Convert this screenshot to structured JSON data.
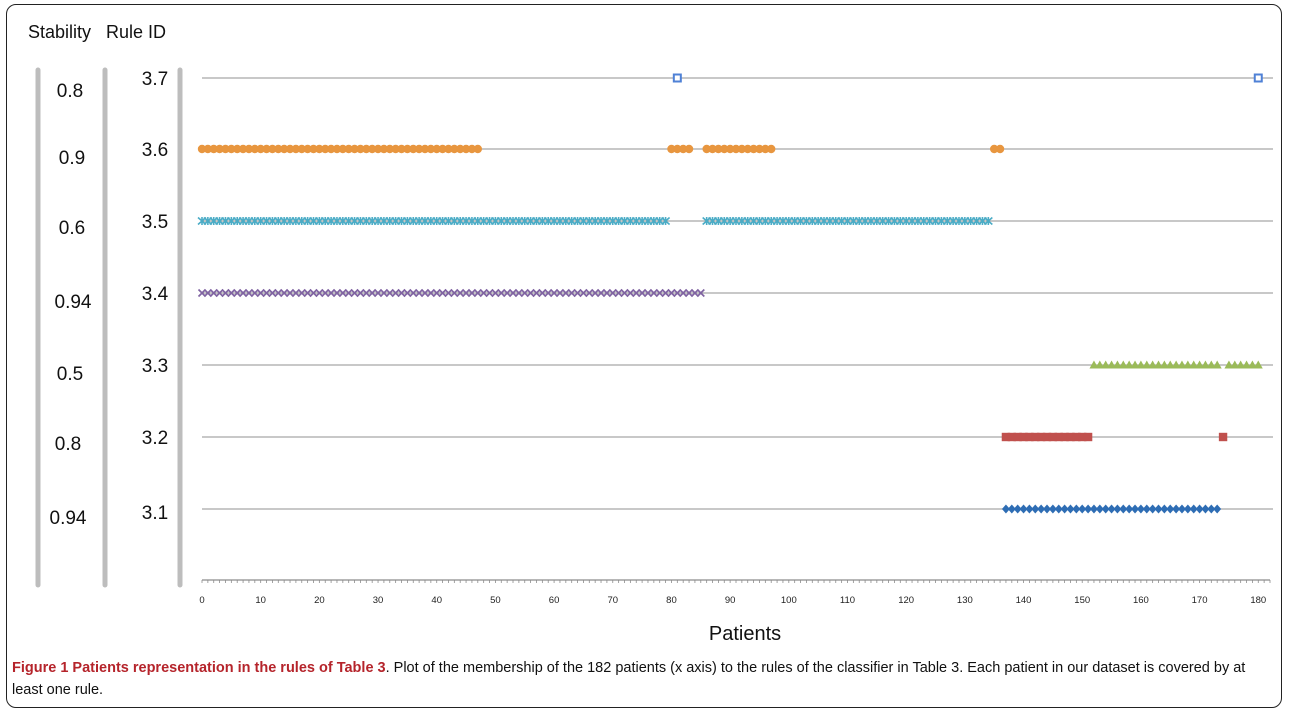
{
  "headers": {
    "stability": "Stability",
    "rule_id": "Rule ID"
  },
  "caption": {
    "title": "Figure 1 Patients representation in the rules of Table 3",
    "text": ". Plot of the membership of the 182 patients (x axis) to the rules of the classifier in Table 3. Each patient in our dataset is covered by at least one rule."
  },
  "colors": {
    "gridline": "#a6a6a6",
    "bracket": "#bdbdbd",
    "axis": "#8c8c8c",
    "caption_title": "#b5242b"
  },
  "chart_data": {
    "type": "scatter",
    "xlabel": "Patients",
    "xlim": [
      0,
      182
    ],
    "xticks": [
      0,
      10,
      20,
      30,
      40,
      50,
      60,
      70,
      80,
      90,
      100,
      110,
      120,
      130,
      140,
      150,
      160,
      170,
      180
    ],
    "grid": true,
    "rows": [
      {
        "stability": "0.8",
        "rule_id": "3.7",
        "marker": "square-open",
        "color": "#4f81d6",
        "points": [
          81,
          180
        ]
      },
      {
        "stability": "0.9",
        "rule_id": "3.6",
        "marker": "circle",
        "color": "#e8963f",
        "ranges": [
          [
            0,
            47
          ],
          [
            80,
            83
          ],
          [
            86,
            97
          ],
          [
            135,
            136
          ]
        ]
      },
      {
        "stability": "0.6",
        "rule_id": "3.5",
        "marker": "star",
        "color": "#4bacc6",
        "ranges": [
          [
            0,
            79
          ],
          [
            86,
            134
          ]
        ]
      },
      {
        "stability": "0.94",
        "rule_id": "3.4",
        "marker": "x",
        "color": "#8064a2",
        "ranges": [
          [
            0,
            85
          ]
        ]
      },
      {
        "stability": "0.5",
        "rule_id": "3.3",
        "marker": "triangle",
        "color": "#9bbb59",
        "ranges": [
          [
            152,
            173
          ],
          [
            175,
            180
          ]
        ]
      },
      {
        "stability": "0.8",
        "rule_id": "3.2",
        "marker": "square",
        "color": "#c0504d",
        "ranges": [
          [
            137,
            151
          ],
          [
            174,
            174
          ]
        ]
      },
      {
        "stability": "0.94",
        "rule_id": "3.1",
        "marker": "diamond",
        "color": "#2e6db4",
        "ranges": [
          [
            137,
            173
          ]
        ]
      }
    ]
  }
}
